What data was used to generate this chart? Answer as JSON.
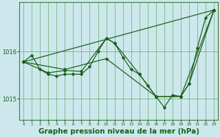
{
  "background_color": "#cce8ec",
  "grid_color": "#66aa66",
  "line_color": "#1a5e1a",
  "marker_color": "#1a5e1a",
  "title": "Graphe pression niveau de la mer (hPa)",
  "title_fontsize": 7.5,
  "ylabel_ticks": [
    1015,
    1016
  ],
  "xlim": [
    -0.5,
    23.5
  ],
  "ylim": [
    1014.55,
    1017.05
  ],
  "series1_x": [
    0,
    1,
    2,
    3,
    4,
    5,
    6,
    7,
    8,
    9,
    10,
    11,
    12,
    13,
    14,
    15,
    16,
    17,
    18,
    19,
    20,
    21,
    22,
    23
  ],
  "series1_y": [
    1015.78,
    1015.92,
    1015.62,
    1015.52,
    1015.48,
    1015.52,
    1015.52,
    1015.52,
    1015.68,
    1016.0,
    1016.28,
    1016.18,
    1015.88,
    1015.62,
    1015.52,
    1015.28,
    1015.05,
    1014.82,
    1015.08,
    1015.05,
    1015.32,
    1016.08,
    1016.72,
    1016.88
  ],
  "series2_x": [
    0,
    3,
    5,
    7,
    10,
    11,
    14,
    16,
    19,
    20,
    23
  ],
  "series2_y": [
    1015.78,
    1015.55,
    1015.6,
    1015.58,
    1016.28,
    1016.18,
    1015.52,
    1015.05,
    1015.05,
    1015.32,
    1016.88
  ],
  "series3_x": [
    0,
    23
  ],
  "series3_y": [
    1015.78,
    1016.88
  ],
  "series4_x": [
    0,
    5,
    10,
    16,
    19,
    23
  ],
  "series4_y": [
    1015.78,
    1015.62,
    1015.85,
    1015.05,
    1015.05,
    1016.88
  ]
}
